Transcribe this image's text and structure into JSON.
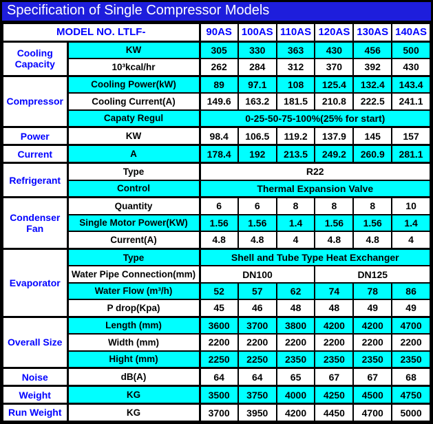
{
  "title": "Specification of Single Compressor Models",
  "header": {
    "model_label": "MODEL NO. LTLF-",
    "models": [
      "90AS",
      "100AS",
      "110AS",
      "120AS",
      "130AS",
      "140AS"
    ]
  },
  "colors": {
    "title_bg": "#1e1edc",
    "title_text": "#ffffff",
    "accent_text": "#0000ff",
    "row_cyan": "#00ffff",
    "row_white": "#ffffff",
    "border": "#000000"
  },
  "sections": [
    {
      "category": "Cooling Capacity",
      "rows": [
        {
          "label": "KW",
          "bg": "cyan",
          "cells": [
            {
              "text": "305"
            },
            {
              "text": "330"
            },
            {
              "text": "363"
            },
            {
              "text": "430"
            },
            {
              "text": "456"
            },
            {
              "text": "500"
            }
          ]
        },
        {
          "label": "10³kcal/hr",
          "bg": "white",
          "cells": [
            {
              "text": "262"
            },
            {
              "text": "284"
            },
            {
              "text": "312"
            },
            {
              "text": "370"
            },
            {
              "text": "392"
            },
            {
              "text": "430"
            }
          ]
        }
      ]
    },
    {
      "category": "Compressor",
      "rows": [
        {
          "label": "Cooling Power(kW)",
          "bg": "cyan",
          "cells": [
            {
              "text": "89"
            },
            {
              "text": "97.1"
            },
            {
              "text": "108"
            },
            {
              "text": "125.4"
            },
            {
              "text": "132.4"
            },
            {
              "text": "143.4"
            }
          ]
        },
        {
          "label": "Cooling Current(A)",
          "bg": "white",
          "cells": [
            {
              "text": "149.6"
            },
            {
              "text": "163.2"
            },
            {
              "text": "181.5"
            },
            {
              "text": "210.8"
            },
            {
              "text": "222.5"
            },
            {
              "text": "241.1"
            }
          ]
        },
        {
          "label": "Capaty Regul",
          "bg": "cyan",
          "cells": [
            {
              "text": "0-25-50-75-100%(25% for start)",
              "span": 6
            }
          ]
        }
      ]
    },
    {
      "category": "Power",
      "rows": [
        {
          "label": "KW",
          "bg": "white",
          "cells": [
            {
              "text": "98.4"
            },
            {
              "text": "106.5"
            },
            {
              "text": "119.2"
            },
            {
              "text": "137.9"
            },
            {
              "text": "145"
            },
            {
              "text": "157"
            }
          ]
        }
      ]
    },
    {
      "category": "Current",
      "rows": [
        {
          "label": "A",
          "bg": "cyan",
          "cells": [
            {
              "text": "178.4"
            },
            {
              "text": "192"
            },
            {
              "text": "213.5"
            },
            {
              "text": "249.2"
            },
            {
              "text": "260.9"
            },
            {
              "text": "281.1"
            }
          ]
        }
      ]
    },
    {
      "category": "Refrigerant",
      "rows": [
        {
          "label": "Type",
          "bg": "white",
          "cells": [
            {
              "text": "R22",
              "span": 6
            }
          ]
        },
        {
          "label": "Control",
          "bg": "cyan",
          "cells": [
            {
              "text": "Thermal Expansion Valve",
              "span": 6
            }
          ]
        }
      ]
    },
    {
      "category": "Condenser Fan",
      "rows": [
        {
          "label": "Quantity",
          "bg": "white",
          "cells": [
            {
              "text": "6"
            },
            {
              "text": "6"
            },
            {
              "text": "8"
            },
            {
              "text": "8"
            },
            {
              "text": "8"
            },
            {
              "text": "10"
            }
          ]
        },
        {
          "label": "Single Motor Power(KW)",
          "bg": "cyan",
          "cells": [
            {
              "text": "1.56"
            },
            {
              "text": "1.56"
            },
            {
              "text": "1.4"
            },
            {
              "text": "1.56"
            },
            {
              "text": "1.56"
            },
            {
              "text": "1.4"
            }
          ]
        },
        {
          "label": "Current(A)",
          "bg": "white",
          "cells": [
            {
              "text": "4.8"
            },
            {
              "text": "4.8"
            },
            {
              "text": "4"
            },
            {
              "text": "4.8"
            },
            {
              "text": "4.8"
            },
            {
              "text": "4"
            }
          ]
        }
      ]
    },
    {
      "category": "Evaporator",
      "rows": [
        {
          "label": "Type",
          "bg": "cyan",
          "cells": [
            {
              "text": "Shell and Tube Type Heat Exchanger",
              "span": 6
            }
          ]
        },
        {
          "label": "Water Pipe Connection(mm)",
          "bg": "white",
          "cells": [
            {
              "text": "DN100",
              "span": 3
            },
            {
              "text": "DN125",
              "span": 3
            }
          ]
        },
        {
          "label": "Water Flow (m³/h)",
          "bg": "cyan",
          "cells": [
            {
              "text": "52"
            },
            {
              "text": "57"
            },
            {
              "text": "62"
            },
            {
              "text": "74"
            },
            {
              "text": "78"
            },
            {
              "text": "86"
            }
          ]
        },
        {
          "label": "P drop(Kpa)",
          "bg": "white",
          "cells": [
            {
              "text": "45"
            },
            {
              "text": "46"
            },
            {
              "text": "48"
            },
            {
              "text": "48"
            },
            {
              "text": "49"
            },
            {
              "text": "49"
            }
          ]
        }
      ]
    },
    {
      "category": "Overall Size",
      "rows": [
        {
          "label": "Length (mm)",
          "bg": "cyan",
          "cells": [
            {
              "text": "3600"
            },
            {
              "text": "3700"
            },
            {
              "text": "3800"
            },
            {
              "text": "4200"
            },
            {
              "text": "4200"
            },
            {
              "text": "4700"
            }
          ]
        },
        {
          "label": "Width (mm)",
          "bg": "white",
          "cells": [
            {
              "text": "2200"
            },
            {
              "text": "2200"
            },
            {
              "text": "2200"
            },
            {
              "text": "2200"
            },
            {
              "text": "2200"
            },
            {
              "text": "2200"
            }
          ]
        },
        {
          "label": "Hight (mm)",
          "bg": "cyan",
          "cells": [
            {
              "text": "2250"
            },
            {
              "text": "2250"
            },
            {
              "text": "2350"
            },
            {
              "text": "2350"
            },
            {
              "text": "2350"
            },
            {
              "text": "2350"
            }
          ]
        }
      ]
    },
    {
      "category": "Noise",
      "rows": [
        {
          "label": "dB(A)",
          "bg": "white",
          "cells": [
            {
              "text": "64"
            },
            {
              "text": "64"
            },
            {
              "text": "65"
            },
            {
              "text": "67"
            },
            {
              "text": "67"
            },
            {
              "text": "68"
            }
          ]
        }
      ]
    },
    {
      "category": "Weight",
      "rows": [
        {
          "label": "KG",
          "bg": "cyan",
          "cells": [
            {
              "text": "3500"
            },
            {
              "text": "3750"
            },
            {
              "text": "4000"
            },
            {
              "text": "4250"
            },
            {
              "text": "4500"
            },
            {
              "text": "4750"
            }
          ]
        }
      ]
    },
    {
      "category": "Run Weight",
      "rows": [
        {
          "label": "KG",
          "bg": "white",
          "cells": [
            {
              "text": "3700"
            },
            {
              "text": "3950"
            },
            {
              "text": "4200"
            },
            {
              "text": "4450"
            },
            {
              "text": "4700"
            },
            {
              "text": "5000"
            }
          ]
        }
      ]
    }
  ]
}
